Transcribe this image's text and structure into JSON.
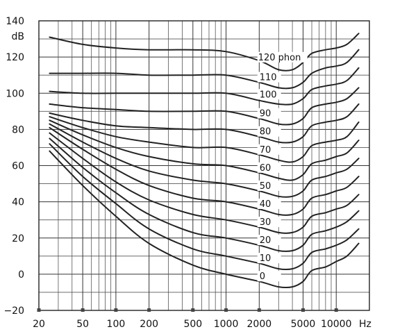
{
  "chart_data": {
    "type": "line",
    "title": "",
    "xlabel": "Hz",
    "ylabel": "dB",
    "x_scale": "log",
    "xlim": [
      20,
      20000
    ],
    "ylim": [
      -20,
      140
    ],
    "grid": true,
    "x_ticks": [
      20,
      50,
      100,
      200,
      500,
      1000,
      2000,
      5000,
      10000
    ],
    "x_tick_labels": [
      "20",
      "50",
      "100",
      "200",
      "500",
      "1000",
      "2000",
      "5000",
      "10000"
    ],
    "y_ticks": [
      -20,
      0,
      20,
      40,
      60,
      80,
      100,
      120,
      140
    ],
    "y_tick_labels": [
      "−20",
      "0",
      "20",
      "40",
      "60",
      "80",
      "100",
      "120",
      "140"
    ],
    "x": [
      25,
      50,
      100,
      200,
      500,
      1000,
      2000,
      3000,
      4000,
      5000,
      6000,
      8000,
      10000,
      12500,
      16000
    ],
    "series": [
      {
        "name": "120 phon",
        "label": "120 phon",
        "values": [
          131,
          127,
          125,
          124,
          124,
          123,
          118,
          113,
          113,
          117,
          122,
          124,
          125,
          127,
          133
        ]
      },
      {
        "name": "110",
        "label": "110",
        "values": [
          111,
          111,
          111,
          110,
          110,
          110,
          106,
          103,
          103,
          106,
          111,
          114,
          115,
          117,
          124
        ]
      },
      {
        "name": "100",
        "label": "100",
        "values": [
          101,
          100,
          100,
          100,
          100,
          100,
          96,
          94,
          94,
          97,
          102,
          104,
          105,
          107,
          114
        ]
      },
      {
        "name": "90",
        "label": "90",
        "values": [
          94,
          92,
          91,
          90,
          90,
          90,
          86,
          83,
          83,
          86,
          92,
          94,
          95,
          97,
          103
        ]
      },
      {
        "name": "80",
        "label": "80",
        "values": [
          89,
          85,
          82,
          81,
          80,
          80,
          76,
          73,
          73,
          76,
          82,
          84,
          85,
          87,
          94
        ]
      },
      {
        "name": "70",
        "label": "70",
        "values": [
          87,
          81,
          76,
          73,
          70,
          70,
          66,
          63,
          62,
          65,
          71,
          73,
          74,
          76,
          84
        ]
      },
      {
        "name": "60",
        "label": "60",
        "values": [
          85,
          77,
          70,
          65,
          61,
          60,
          56,
          53,
          52,
          55,
          61,
          63,
          65,
          67,
          74
        ]
      },
      {
        "name": "50",
        "label": "50",
        "values": [
          83,
          73,
          64,
          57,
          52,
          50,
          46,
          43,
          43,
          46,
          52,
          54,
          56,
          58,
          64
        ]
      },
      {
        "name": "40",
        "label": "40",
        "values": [
          81,
          69,
          58,
          49,
          42,
          40,
          36,
          33,
          33,
          36,
          42,
          44,
          46,
          48,
          54
        ]
      },
      {
        "name": "30",
        "label": "30",
        "values": [
          78,
          64,
          51,
          41,
          33,
          30,
          26,
          23,
          23,
          26,
          32,
          34,
          36,
          38,
          44
        ]
      },
      {
        "name": "20",
        "label": "20",
        "values": [
          75,
          59,
          45,
          33,
          23,
          20,
          16,
          13,
          13,
          16,
          22,
          24,
          26,
          29,
          35
        ]
      },
      {
        "name": "10",
        "label": "10",
        "values": [
          72,
          54,
          39,
          25,
          14,
          10,
          6,
          3,
          3,
          6,
          12,
          14,
          16,
          19,
          25
        ]
      },
      {
        "name": "0",
        "label": "0",
        "values": [
          68,
          49,
          32,
          17,
          5,
          0,
          -4,
          -7,
          -7,
          -4,
          2,
          4,
          7,
          10,
          17
        ]
      }
    ]
  }
}
